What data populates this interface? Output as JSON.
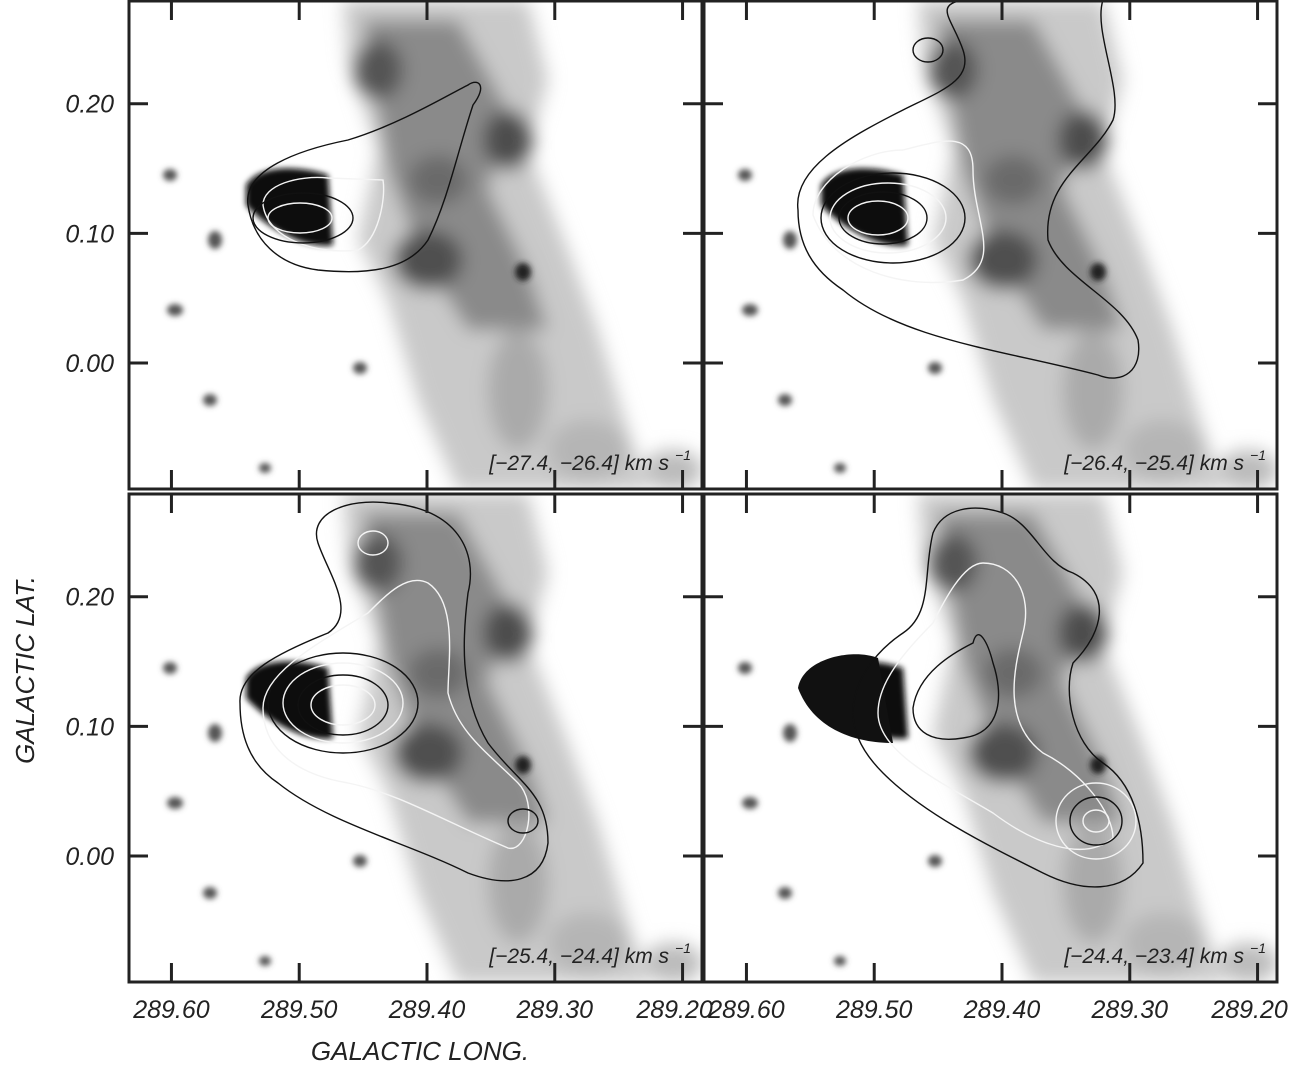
{
  "chart_data": {
    "type": "image-grid",
    "xlabel": "GALACTIC LONG.",
    "ylabel": "GALACTIC LAT.",
    "xlim": [
      289.634,
      289.184
    ],
    "ylim": [
      -0.098,
      0.28
    ],
    "xticks": [
      {
        "value": 289.6,
        "label": "289.60"
      },
      {
        "value": 289.5,
        "label": "289.50"
      },
      {
        "value": 289.4,
        "label": "289.40"
      },
      {
        "value": 289.3,
        "label": "289.30"
      },
      {
        "value": 289.2,
        "label": "289.20"
      }
    ],
    "yticks": [
      {
        "value": 0.2,
        "label": "0.20"
      },
      {
        "value": 0.1,
        "label": "0.10"
      },
      {
        "value": 0,
        "label": "0.00"
      }
    ],
    "panels": [
      {
        "label": "[−27.4, −26.4] km s",
        "label_sup": "−1"
      },
      {
        "label": "[−26.4, −25.4] km s",
        "label_sup": "−1"
      },
      {
        "label": "[−25.4, −24.4] km s",
        "label_sup": "−1"
      },
      {
        "label": "[−24.4, −23.4] km s",
        "label_sup": "−1"
      }
    ]
  }
}
